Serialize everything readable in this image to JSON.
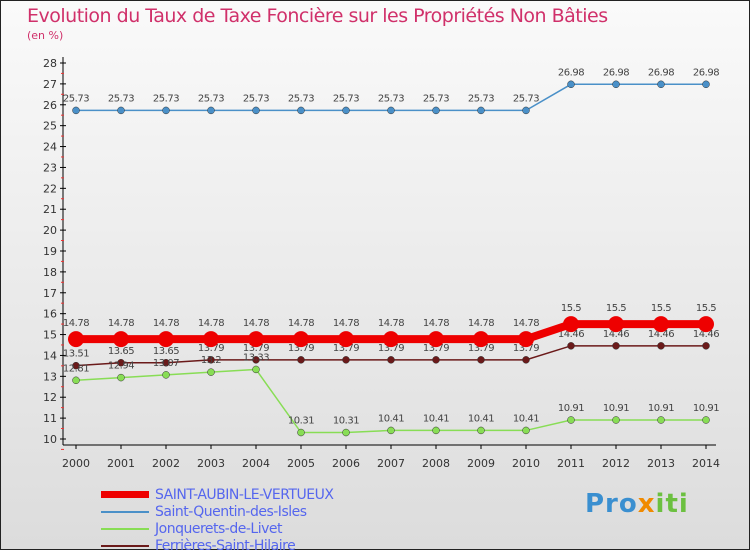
{
  "chart_data": {
    "type": "line",
    "title": "Evolution du Taux de Taxe Foncière sur les Propriétés Non Bâties",
    "ylabel": "(en %)",
    "xlabel": "",
    "ylim": [
      10,
      28
    ],
    "yticks": [
      10,
      11,
      12,
      13,
      14,
      15,
      16,
      17,
      18,
      19,
      20,
      21,
      22,
      23,
      24,
      25,
      26,
      27,
      28
    ],
    "x": [
      2000,
      2001,
      2002,
      2003,
      2004,
      2005,
      2006,
      2007,
      2008,
      2009,
      2010,
      2011,
      2012,
      2013,
      2014
    ],
    "series": [
      {
        "name": "SAINT-AUBIN-LE-VERTUEUX",
        "color": "#ee0000",
        "values": [
          14.78,
          14.78,
          14.78,
          14.78,
          14.78,
          14.78,
          14.78,
          14.78,
          14.78,
          14.78,
          14.78,
          15.5,
          15.5,
          15.5,
          15.5
        ]
      },
      {
        "name": "Saint-Quentin-des-Isles",
        "color": "#4a90c8",
        "values": [
          25.73,
          25.73,
          25.73,
          25.73,
          25.73,
          25.73,
          25.73,
          25.73,
          25.73,
          25.73,
          25.73,
          26.98,
          26.98,
          26.98,
          26.98
        ]
      },
      {
        "name": "Jonquerets-de-Livet",
        "color": "#88dd55",
        "values": [
          12.81,
          12.94,
          13.07,
          13.2,
          13.33,
          10.31,
          10.31,
          10.41,
          10.41,
          10.41,
          10.41,
          10.91,
          10.91,
          10.91,
          10.91
        ]
      },
      {
        "name": "Ferrières-Saint-Hilaire",
        "color": "#6b1a1a",
        "values": [
          13.51,
          13.65,
          13.65,
          13.79,
          13.79,
          13.79,
          13.79,
          13.79,
          13.79,
          13.79,
          13.79,
          14.46,
          14.46,
          14.46,
          14.46
        ]
      }
    ],
    "legend": "bottom-left",
    "grid": false
  },
  "logo": "Proxiti"
}
